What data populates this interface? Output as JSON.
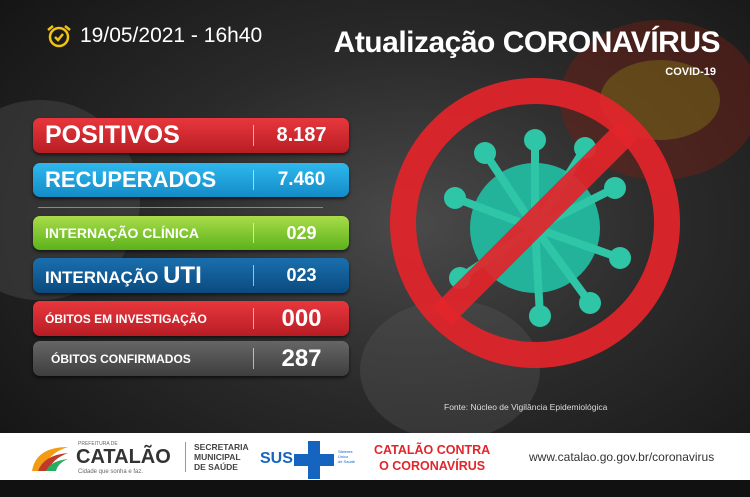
{
  "header": {
    "date_time": "19/05/2021 - 16h40",
    "icon": "alarm-clock-icon",
    "title": "Atualização CORONAVÍRUS",
    "subtitle": "COVID-19"
  },
  "stats": [
    {
      "label": "POSITIVOS",
      "value": "8.187",
      "color": "#d6262e"
    },
    {
      "label": "RECUPERADOS",
      "value": "7.460",
      "color": "#1ea4df"
    },
    {
      "label": "INTERNAÇÃO CLÍNICA",
      "value": "029",
      "color": "#7cc82a"
    },
    {
      "label": "INTERNAÇÃO",
      "label_strong": "UTI",
      "value": "023",
      "color": "#0d5b97"
    },
    {
      "label": "ÓBITOS EM INVESTIGAÇÃO",
      "value": "000",
      "color": "#d6262e"
    },
    {
      "label": "ÓBITOS CONFIRMADOS",
      "value": "287",
      "color": "#555555"
    }
  ],
  "source": "Fonte: Núcleo de Vigilância Epidemiológica",
  "footer": {
    "prefeitura_small": "PREFEITURA DE",
    "prefeitura_name": "CATALÃO",
    "slogan": "Cidade que sonha e faz.",
    "secretaria": [
      "SECRETARIA",
      "MUNICIPAL",
      "DE SAÚDE"
    ],
    "sus": "SUS",
    "sus_small": [
      "Sistema",
      "Único",
      "de Saúde"
    ],
    "campaign": [
      "CATALÃO CONTRA",
      "O CORONAVÍRUS"
    ],
    "website": "www.catalao.go.gov.br/coronavirus"
  }
}
